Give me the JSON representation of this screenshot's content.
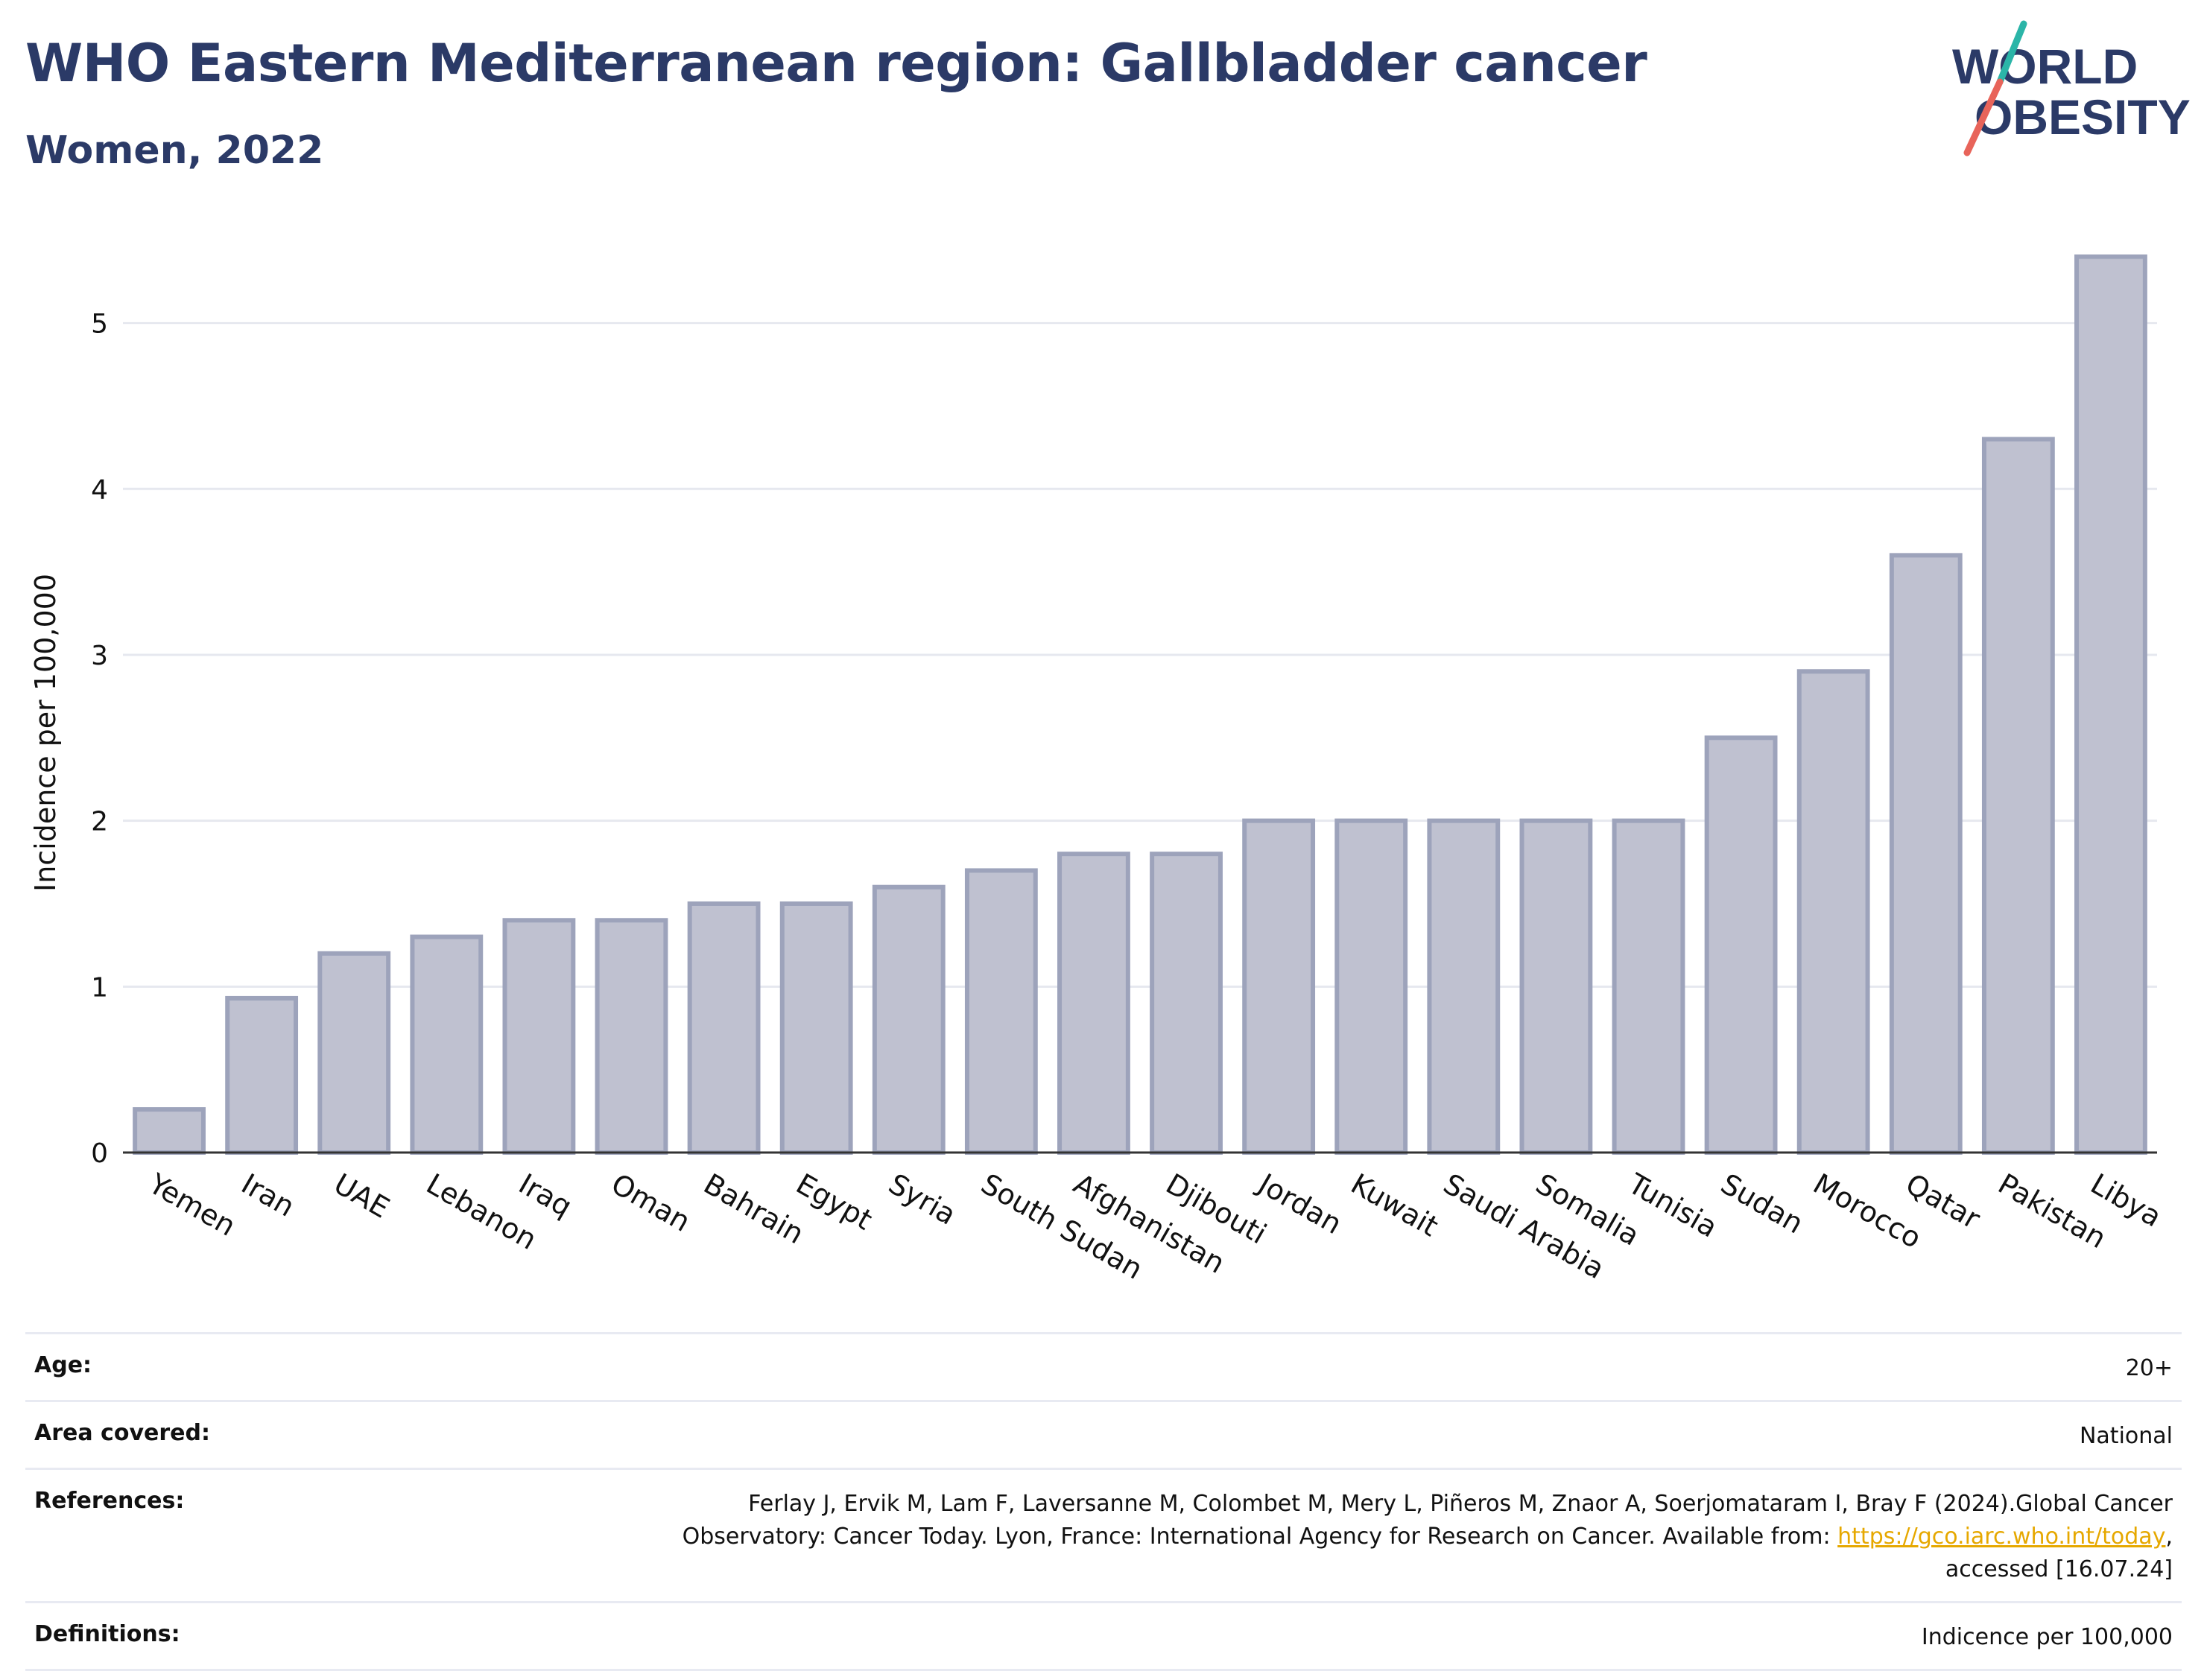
{
  "header": {
    "title": "WHO Eastern Mediterranean region: Gallbladder cancer",
    "subtitle": "Women, 2022"
  },
  "logo": {
    "line1": "WORLD",
    "line2": "OBESITY",
    "colors": {
      "text": "#2b3a67",
      "slash_top": "#2bb5a8",
      "slash_bottom": "#e8645a"
    }
  },
  "chart_data": {
    "type": "bar",
    "categories": [
      "Yemen",
      "Iran",
      "UAE",
      "Lebanon",
      "Iraq",
      "Oman",
      "Bahrain",
      "Egypt",
      "Syria",
      "South Sudan",
      "Afghanistan",
      "Djibouti",
      "Jordan",
      "Kuwait",
      "Saudi Arabia",
      "Somalia",
      "Tunisia",
      "Sudan",
      "Morocco",
      "Qatar",
      "Pakistan",
      "Libya"
    ],
    "values": [
      0.26,
      0.93,
      1.2,
      1.3,
      1.4,
      1.4,
      1.5,
      1.5,
      1.6,
      1.7,
      1.8,
      1.8,
      2.0,
      2.0,
      2.0,
      2.0,
      2.0,
      2.5,
      2.9,
      3.6,
      4.3,
      5.4
    ],
    "ylabel": "Incidence per 100,000",
    "xlabel": "",
    "ylim": [
      0,
      5.6
    ],
    "yticks": [
      0,
      1,
      2,
      3,
      4,
      5
    ],
    "grid": true,
    "bar_color": "#bfc1d0",
    "bar_border": "#9da3bb"
  },
  "meta": {
    "age_label": "Age:",
    "age_value": "20+",
    "area_label": "Area covered:",
    "area_value": "National",
    "ref_label": "References:",
    "ref_line1": "Ferlay J, Ervik M, Lam F, Laversanne M, Colombet M, Mery L, Piñeros M, Znaor A, Soerjomataram I, Bray F (2024).Global Cancer",
    "ref_line2_pre": "Observatory: Cancer Today. Lyon, France: International Agency for Research on Cancer. Available from: ",
    "ref_link": "https://gco.iarc.who.int/today",
    "ref_line2_post": ",",
    "ref_line3": "accessed [16.07.24]",
    "def_label": "Definitions:",
    "def_value": "Indicence per 100,000"
  }
}
